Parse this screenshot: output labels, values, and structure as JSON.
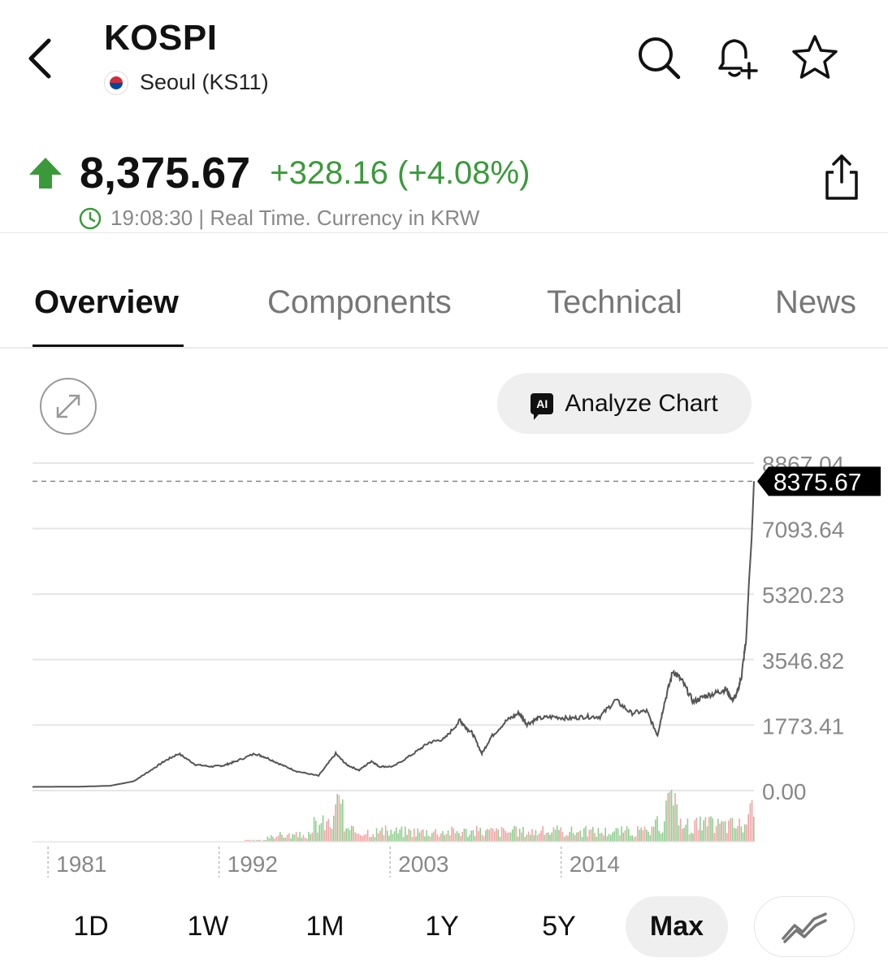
{
  "header": {
    "back_icon": "chevron-left-icon",
    "title": "KOSPI",
    "exchange": "Seoul (KS11)",
    "flag_icon": "south-korea-flag-icon",
    "actions": [
      "search-icon",
      "bell-plus-icon",
      "star-icon"
    ]
  },
  "quote": {
    "direction_icon": "arrow-up-icon",
    "price": "8,375.67",
    "change": "+328.16 (+4.08%)",
    "time_icon": "clock-icon",
    "timestamp": "19:08:30 | Real Time. Currency in KRW",
    "share_icon": "share-icon",
    "up_color": "#3a9a3a"
  },
  "tabs": [
    {
      "label": "Overview",
      "active": true
    },
    {
      "label": "Components",
      "active": false
    },
    {
      "label": "Technical",
      "active": false
    },
    {
      "label": "News",
      "active": false
    }
  ],
  "chart_controls": {
    "expand_icon": "expand-icon",
    "analyze_label": "Analyze Chart",
    "ai_badge": "AI"
  },
  "chart_data": {
    "type": "line",
    "y_ticks": [
      "8867.04",
      "7093.64",
      "5320.23",
      "3546.82",
      "1773.41",
      "0.00"
    ],
    "y_tick_values": [
      8867.04,
      7093.64,
      5320.23,
      3546.82,
      1773.41,
      0
    ],
    "ylim": [
      0,
      8867.04
    ],
    "x_ticks": [
      "1981",
      "1992",
      "2003",
      "2014"
    ],
    "xlim": [
      1980,
      2026.4
    ],
    "current_value": 8375.67,
    "current_label": "8375.67",
    "series": [
      {
        "x": [
          1980,
          1983,
          1985,
          1986.5,
          1987.5,
          1988.5,
          1989.4,
          1990.5,
          1991.5,
          1992.3,
          1993,
          1994.3,
          1995,
          1996,
          1997,
          1998.4,
          1999.5,
          2000.2,
          2001,
          2001.8,
          2002.3,
          2003.2,
          2004.5,
          2005.5,
          2006.5,
          2007.5,
          2007.8,
          2008.3,
          2008.9,
          2009.5,
          2010.5,
          2011.3,
          2011.8,
          2012.5,
          2013.5,
          2014.5,
          2015.5,
          2016.5,
          2017.5,
          2018.5,
          2019.5,
          2020.2,
          2020.6,
          2021.2,
          2021.8,
          2022.5,
          2023.2,
          2024,
          2024.6,
          2025,
          2025.3,
          2025.6,
          2025.9,
          2026.1,
          2026.25,
          2026.4
        ],
        "y": [
          100,
          105,
          130,
          250,
          520,
          800,
          1000,
          700,
          650,
          680,
          780,
          1000,
          900,
          700,
          520,
          400,
          1000,
          700,
          550,
          800,
          650,
          650,
          1000,
          1300,
          1400,
          1900,
          1750,
          1550,
          1000,
          1450,
          1900,
          2100,
          1800,
          1950,
          2000,
          1950,
          2000,
          2000,
          2450,
          2100,
          2150,
          1500,
          2300,
          3250,
          2950,
          2400,
          2550,
          2650,
          2750,
          2450,
          2600,
          3100,
          4100,
          5800,
          6800,
          8375.67
        ]
      }
    ],
    "volume_colors": {
      "up": "#8fce8f",
      "down": "#f0a5a5"
    },
    "line_color": "#555555"
  },
  "ranges": [
    {
      "label": "1D",
      "active": false
    },
    {
      "label": "1W",
      "active": false
    },
    {
      "label": "1M",
      "active": false
    },
    {
      "label": "1Y",
      "active": false
    },
    {
      "label": "5Y",
      "active": false
    },
    {
      "label": "Max",
      "active": true
    }
  ],
  "chart_type_icon": "line-chart-icon"
}
